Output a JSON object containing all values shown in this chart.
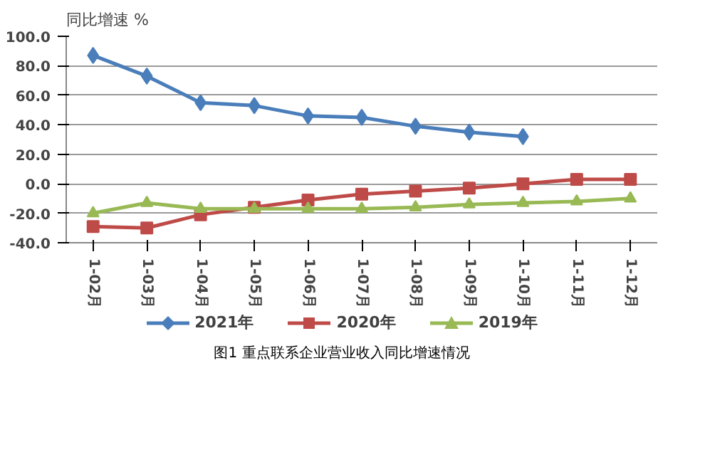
{
  "chart_data": {
    "type": "line",
    "ylabel": "同比增速 %",
    "annotations": [
      "图1  重点联系企业营业收入同比增速情况"
    ],
    "categories": [
      "1-02月",
      "1-03月",
      "1-04月",
      "1-05月",
      "1-06月",
      "1-07月",
      "1-08月",
      "1-09月",
      "1-10月",
      "1-11月",
      "1-12月"
    ],
    "series": [
      {
        "name": "2021年",
        "color": "#4a7ebb",
        "marker": "diamond",
        "values": [
          87,
          73,
          55,
          53,
          46,
          45,
          39,
          35,
          32,
          null,
          null
        ]
      },
      {
        "name": "2020年",
        "color": "#be4b48",
        "marker": "square",
        "values": [
          -29,
          -30,
          -21,
          -16,
          -11,
          -7,
          -5,
          -3,
          0,
          3,
          3
        ]
      },
      {
        "name": "2019年",
        "color": "#98b954",
        "marker": "triangle",
        "values": [
          -20,
          -13,
          -17,
          -17,
          -17,
          -17,
          -16,
          -14,
          -13,
          -12,
          -10
        ]
      }
    ],
    "ylim": [
      -40,
      100
    ],
    "yticks": [
      {
        "value": -40,
        "label": "-40.0"
      },
      {
        "value": -20,
        "label": "-20.0"
      },
      {
        "value": 0,
        "label": "0.0"
      },
      {
        "value": 20,
        "label": "20.0"
      },
      {
        "value": 40,
        "label": "40.0"
      },
      {
        "value": 60,
        "label": "60.0"
      },
      {
        "value": 80,
        "label": "80.0"
      },
      {
        "value": 100,
        "label": "100.0"
      }
    ],
    "grid": "y",
    "legend": "bottom",
    "line_style": "solid"
  }
}
